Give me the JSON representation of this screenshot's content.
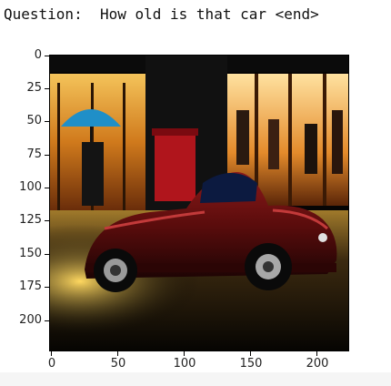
{
  "question_text": "Question:  How old is that car <end>",
  "plot": {
    "x_ticks": [
      "0",
      "50",
      "100",
      "150",
      "200"
    ],
    "y_ticks": [
      "0",
      "25",
      "50",
      "75",
      "100",
      "125",
      "150",
      "175",
      "200"
    ],
    "image_content": "street scene with vintage red car"
  }
}
